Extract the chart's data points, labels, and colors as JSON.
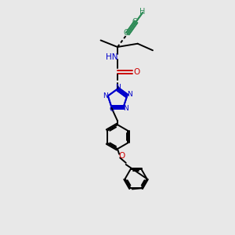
{
  "bg_color": "#e8e8e8",
  "bond_color": "#000000",
  "N_color": "#0000cc",
  "O_color": "#cc0000",
  "C_teal": "#2e8b57",
  "line_width": 1.4,
  "figsize": [
    3.0,
    3.0
  ],
  "dpi": 100,
  "xlim": [
    0,
    10
  ],
  "ylim": [
    0,
    14
  ]
}
